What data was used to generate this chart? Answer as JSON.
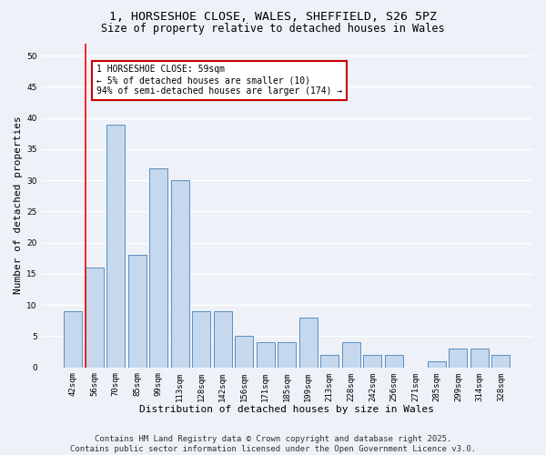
{
  "title_line1": "1, HORSESHOE CLOSE, WALES, SHEFFIELD, S26 5PZ",
  "title_line2": "Size of property relative to detached houses in Wales",
  "xlabel": "Distribution of detached houses by size in Wales",
  "ylabel": "Number of detached properties",
  "categories": [
    "42sqm",
    "56sqm",
    "70sqm",
    "85sqm",
    "99sqm",
    "113sqm",
    "128sqm",
    "142sqm",
    "156sqm",
    "171sqm",
    "185sqm",
    "199sqm",
    "213sqm",
    "228sqm",
    "242sqm",
    "256sqm",
    "271sqm",
    "285sqm",
    "299sqm",
    "314sqm",
    "328sqm"
  ],
  "values": [
    9,
    16,
    39,
    18,
    32,
    30,
    9,
    9,
    5,
    4,
    4,
    8,
    2,
    4,
    2,
    2,
    0,
    1,
    3,
    3,
    2
  ],
  "bar_color": "#c5d8ed",
  "bar_edge_color": "#5a8fc2",
  "red_line_x": 0.575,
  "ylim": [
    0,
    52
  ],
  "yticks": [
    0,
    5,
    10,
    15,
    20,
    25,
    30,
    35,
    40,
    45,
    50
  ],
  "annotation_text": "1 HORSESHOE CLOSE: 59sqm\n← 5% of detached houses are smaller (10)\n94% of semi-detached houses are larger (174) →",
  "annotation_box_facecolor": "#ffffff",
  "annotation_box_edgecolor": "#cc0000",
  "footer_line1": "Contains HM Land Registry data © Crown copyright and database right 2025.",
  "footer_line2": "Contains public sector information licensed under the Open Government Licence v3.0.",
  "background_color": "#eef2f8",
  "grid_color": "#ffffff",
  "title_fontsize": 9.5,
  "subtitle_fontsize": 8.5,
  "tick_fontsize": 6.5,
  "label_fontsize": 8,
  "footer_fontsize": 6.5,
  "annotation_fontsize": 7
}
